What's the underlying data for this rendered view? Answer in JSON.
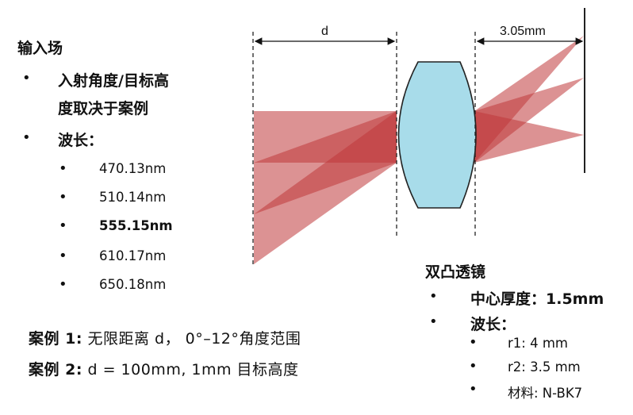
{
  "input": {
    "heading": "输入场",
    "items": [
      "入射角度/目标高",
      "度取决于案例",
      "波长："
    ],
    "wavelengths": [
      "470.13nm",
      "510.14nm",
      "555.15nm",
      "610.17nm",
      "650.18nm"
    ]
  },
  "cases": {
    "case1_label": "案例 1:",
    "case1_text": "无限距离 d， 0°–12°角度范围",
    "case2_label": "案例 2:",
    "case2_text": "d = 100mm, 1mm 目标高度"
  },
  "diagram": {
    "d_label": "d",
    "dist_label": "3.05mm"
  },
  "lens": {
    "heading": "双凸透镜",
    "thickness_label": "中心厚度：",
    "thickness_value": "1.5mm",
    "wavelength_label": "波长：",
    "r1": "r1: 4 mm",
    "r2": "r2: 3.5 mm",
    "material": "材料: N-BK7"
  },
  "colors": {
    "beam": "#c0393b",
    "lens_fill": "#a8dcea",
    "bullet": "#111111"
  }
}
